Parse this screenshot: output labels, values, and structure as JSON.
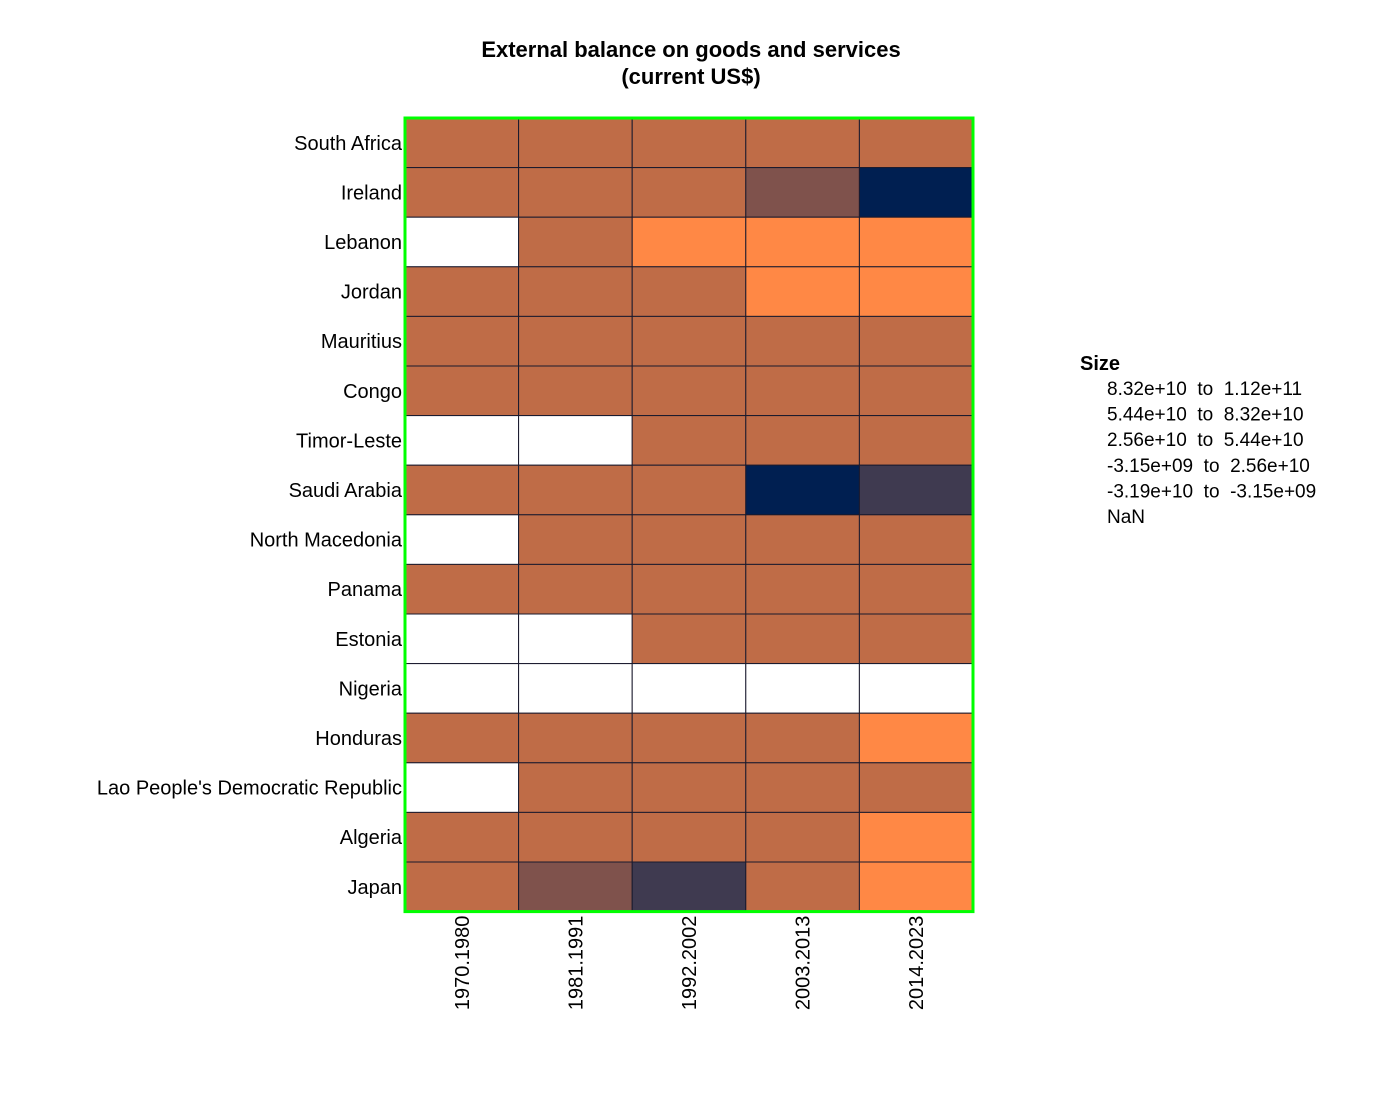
{
  "chart_data": {
    "type": "heatmap",
    "title": [
      "External balance on goods and services",
      "(current US$)"
    ],
    "rows": [
      "South Africa",
      "Ireland",
      "Lebanon",
      "Jordan",
      "Mauritius",
      "Congo",
      "Timor-Leste",
      "Saudi Arabia",
      "North Macedonia",
      "Panama",
      "Estonia",
      "Nigeria",
      "Honduras",
      "Lao People's Democratic Republic",
      "Algeria",
      "Japan"
    ],
    "columns": [
      "1970.1980",
      "1981.1991",
      "1992.2002",
      "2003.2013",
      "2014.2023"
    ],
    "values": [
      [
        "-3.15e+09 to 2.56e+10",
        "-3.15e+09 to 2.56e+10",
        "-3.15e+09 to 2.56e+10",
        "-3.15e+09 to 2.56e+10",
        "-3.15e+09 to 2.56e+10"
      ],
      [
        "-3.15e+09 to 2.56e+10",
        "-3.15e+09 to 2.56e+10",
        "-3.15e+09 to 2.56e+10",
        "2.56e+10 to 5.44e+10",
        "8.32e+10 to 1.12e+11"
      ],
      [
        "NaN",
        "-3.15e+09 to 2.56e+10",
        "-3.19e+10 to -3.15e+09",
        "-3.19e+10 to -3.15e+09",
        "-3.19e+10 to -3.15e+09"
      ],
      [
        "-3.15e+09 to 2.56e+10",
        "-3.15e+09 to 2.56e+10",
        "-3.15e+09 to 2.56e+10",
        "-3.19e+10 to -3.15e+09",
        "-3.19e+10 to -3.15e+09"
      ],
      [
        "-3.15e+09 to 2.56e+10",
        "-3.15e+09 to 2.56e+10",
        "-3.15e+09 to 2.56e+10",
        "-3.15e+09 to 2.56e+10",
        "-3.15e+09 to 2.56e+10"
      ],
      [
        "-3.15e+09 to 2.56e+10",
        "-3.15e+09 to 2.56e+10",
        "-3.15e+09 to 2.56e+10",
        "-3.15e+09 to 2.56e+10",
        "-3.15e+09 to 2.56e+10"
      ],
      [
        "NaN",
        "NaN",
        "-3.15e+09 to 2.56e+10",
        "-3.15e+09 to 2.56e+10",
        "-3.15e+09 to 2.56e+10"
      ],
      [
        "-3.15e+09 to 2.56e+10",
        "-3.15e+09 to 2.56e+10",
        "-3.15e+09 to 2.56e+10",
        "8.32e+10 to 1.12e+11",
        "5.44e+10 to 8.32e+10"
      ],
      [
        "NaN",
        "-3.15e+09 to 2.56e+10",
        "-3.15e+09 to 2.56e+10",
        "-3.15e+09 to 2.56e+10",
        "-3.15e+09 to 2.56e+10"
      ],
      [
        "-3.15e+09 to 2.56e+10",
        "-3.15e+09 to 2.56e+10",
        "-3.15e+09 to 2.56e+10",
        "-3.15e+09 to 2.56e+10",
        "-3.15e+09 to 2.56e+10"
      ],
      [
        "NaN",
        "NaN",
        "-3.15e+09 to 2.56e+10",
        "-3.15e+09 to 2.56e+10",
        "-3.15e+09 to 2.56e+10"
      ],
      [
        "NaN",
        "NaN",
        "NaN",
        "NaN",
        "NaN"
      ],
      [
        "-3.15e+09 to 2.56e+10",
        "-3.15e+09 to 2.56e+10",
        "-3.15e+09 to 2.56e+10",
        "-3.15e+09 to 2.56e+10",
        "-3.19e+10 to -3.15e+09"
      ],
      [
        "NaN",
        "-3.15e+09 to 2.56e+10",
        "-3.15e+09 to 2.56e+10",
        "-3.15e+09 to 2.56e+10",
        "-3.15e+09 to 2.56e+10"
      ],
      [
        "-3.15e+09 to 2.56e+10",
        "-3.15e+09 to 2.56e+10",
        "-3.15e+09 to 2.56e+10",
        "-3.15e+09 to 2.56e+10",
        "-3.19e+10 to -3.15e+09"
      ],
      [
        "-3.15e+09 to 2.56e+10",
        "2.56e+10 to 5.44e+10",
        "5.44e+10 to 8.32e+10",
        "-3.15e+09 to 2.56e+10",
        "-3.19e+10 to -3.15e+09"
      ]
    ],
    "legend": {
      "title": "Size",
      "placement": "right",
      "entries": [
        {
          "label": "8.32e+10  to  1.12e+11",
          "key": "8.32e+10 to 1.12e+11",
          "color": "#001f51"
        },
        {
          "label": "5.44e+10  to  8.32e+10",
          "key": "5.44e+10 to 8.32e+10",
          "color": "#3f3a50"
        },
        {
          "label": "2.56e+10  to  5.44e+10",
          "key": "2.56e+10 to 5.44e+10",
          "color": "#7f524c"
        },
        {
          "label": "-3.15e+09  to  2.56e+10",
          "key": "-3.15e+09 to 2.56e+10",
          "color": "#bf6c47"
        },
        {
          "label": "-3.19e+10  to  -3.15e+09",
          "key": "-3.19e+10 to -3.15e+09",
          "color": "#ff8845"
        },
        {
          "label": "NaN",
          "key": "NaN",
          "color": "#ffffff"
        }
      ]
    },
    "grid": true,
    "border_color": "#00ff00",
    "cell_border_color": "#1a1a2e"
  }
}
